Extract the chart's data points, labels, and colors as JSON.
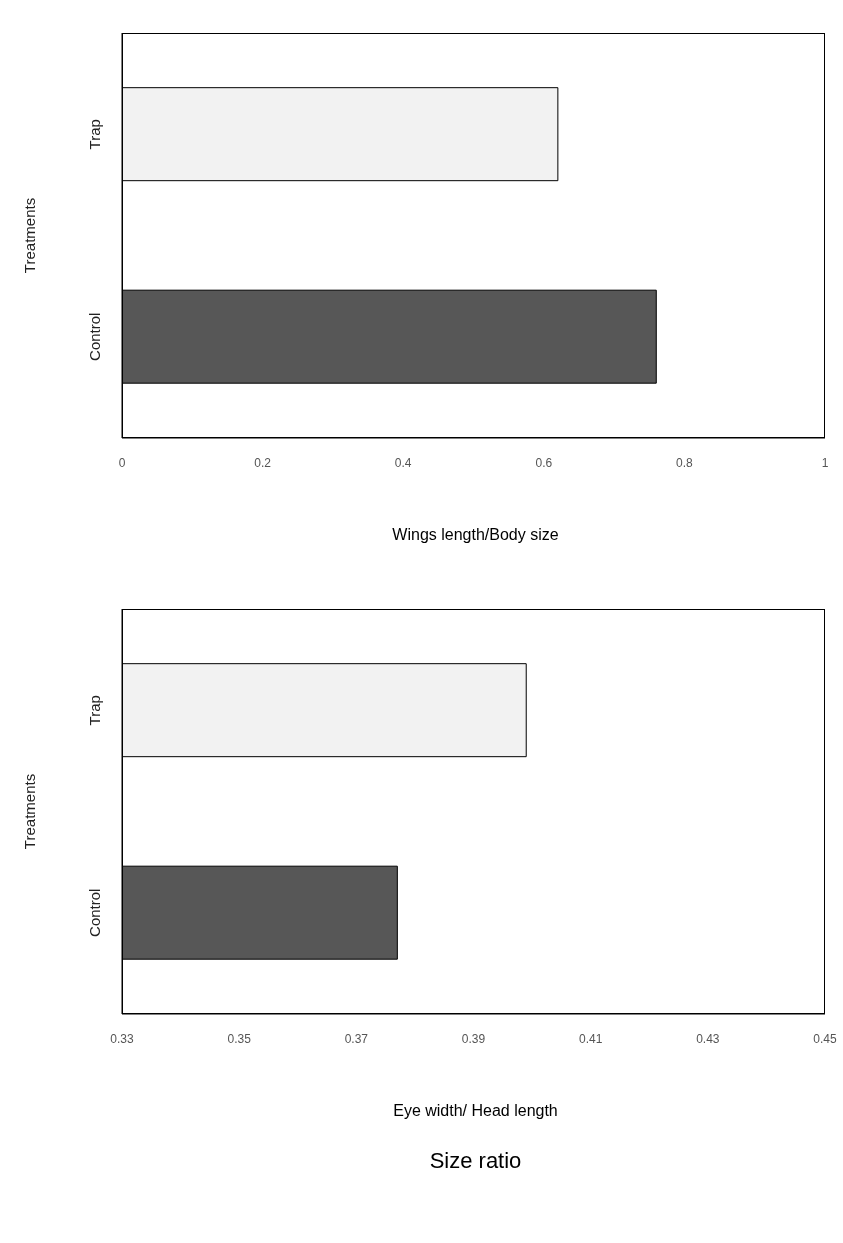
{
  "chart_data": [
    {
      "type": "bar",
      "orientation": "horizontal",
      "categories": [
        "Trap",
        "Control"
      ],
      "values": [
        0.62,
        0.76
      ],
      "colors": [
        "#f2f2f2",
        "#575757"
      ],
      "xlim": [
        0,
        1
      ],
      "xticks": [
        0,
        0.2,
        0.4,
        0.6,
        0.8,
        1
      ],
      "xlabel": "Wings length/Body size",
      "ylabel": "Treatments",
      "grid": false
    },
    {
      "type": "bar",
      "orientation": "horizontal",
      "categories": [
        "Trap",
        "Control"
      ],
      "values": [
        0.399,
        0.377
      ],
      "colors": [
        "#f2f2f2",
        "#575757"
      ],
      "xlim": [
        0.33,
        0.45
      ],
      "xticks": [
        0.33,
        0.35,
        0.37,
        0.39,
        0.41,
        0.43,
        0.45
      ],
      "xlabel": "Eye width/ Head length",
      "ylabel": "Treatments",
      "grid": false,
      "annotations": [
        "Size ratio"
      ]
    }
  ]
}
